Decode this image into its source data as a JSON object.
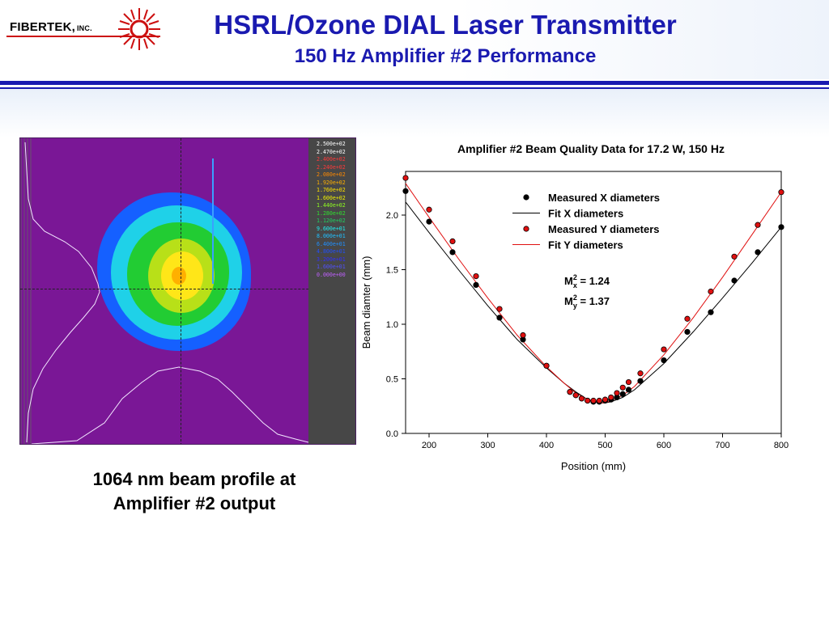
{
  "header": {
    "logo_text": "FIBERTEK,",
    "logo_suffix": "INC.",
    "title": "HSRL/Ozone DIAL Laser Transmitter",
    "subtitle": "150 Hz Amplifier #2 Performance"
  },
  "profile": {
    "color_scale": [
      {
        "label": "2.500e+02",
        "color": "#ffffff"
      },
      {
        "label": "2.470e+02",
        "color": "#ffffff"
      },
      {
        "label": "2.400e+02",
        "color": "#ff3a3a"
      },
      {
        "label": "2.240e+02",
        "color": "#ff3a3a"
      },
      {
        "label": "2.080e+02",
        "color": "#ff8a00"
      },
      {
        "label": "1.920e+02",
        "color": "#ffb000"
      },
      {
        "label": "1.760e+02",
        "color": "#ffe000"
      },
      {
        "label": "1.600e+02",
        "color": "#f0f000"
      },
      {
        "label": "1.440e+02",
        "color": "#90ff20"
      },
      {
        "label": "1.280e+02",
        "color": "#30e030"
      },
      {
        "label": "1.120e+02",
        "color": "#20d060"
      },
      {
        "label": "9.600e+01",
        "color": "#20f0f0"
      },
      {
        "label": "8.000e+01",
        "color": "#20c0ff"
      },
      {
        "label": "6.400e+01",
        "color": "#2090ff"
      },
      {
        "label": "4.800e+01",
        "color": "#2050ff"
      },
      {
        "label": "3.200e+01",
        "color": "#3030ff"
      },
      {
        "label": "1.600e+01",
        "color": "#5050ff"
      },
      {
        "label": "0.000e+00",
        "color": "#c060ff"
      }
    ],
    "caption_line1": "1064 nm beam profile at",
    "caption_line2": "Amplifier #2 output"
  },
  "chart_data": {
    "type": "scatter",
    "title": "Amplifier #2 Beam Quality Data for 17.2 W, 150 Hz",
    "xlabel": "Position (mm)",
    "ylabel": "Beam diamter (mm)",
    "xlim": [
      160,
      800
    ],
    "ylim": [
      0.0,
      2.4
    ],
    "xticks": [
      200,
      300,
      400,
      500,
      600,
      700,
      800
    ],
    "yticks": [
      0.0,
      0.5,
      1.0,
      1.5,
      2.0
    ],
    "xtick_labels": [
      "200",
      "300",
      "400",
      "500",
      "600",
      "700",
      "800"
    ],
    "ytick_labels": [
      "0.0",
      "0.5",
      "1.0",
      "1.5",
      "2.0"
    ],
    "legend_position": "top-right",
    "series": [
      {
        "name": "Measured X diameters",
        "kind": "markers",
        "color": "#000000",
        "x": [
          160,
          200,
          240,
          280,
          320,
          360,
          400,
          440,
          450,
          460,
          470,
          480,
          490,
          500,
          510,
          520,
          530,
          540,
          560,
          600,
          640,
          680,
          720,
          760,
          800
        ],
        "y": [
          2.22,
          1.94,
          1.66,
          1.36,
          1.06,
          0.86,
          0.62,
          0.38,
          0.35,
          0.32,
          0.3,
          0.29,
          0.29,
          0.3,
          0.31,
          0.33,
          0.36,
          0.4,
          0.48,
          0.67,
          0.93,
          1.11,
          1.4,
          1.66,
          1.89
        ]
      },
      {
        "name": "Fit X diameters",
        "kind": "line",
        "color": "#000000",
        "x": [
          160,
          200,
          250,
          300,
          350,
          400,
          430,
          450,
          470,
          490,
          500,
          510,
          530,
          550,
          600,
          650,
          700,
          750,
          800
        ],
        "y": [
          2.12,
          1.84,
          1.5,
          1.17,
          0.86,
          0.6,
          0.46,
          0.38,
          0.31,
          0.28,
          0.28,
          0.29,
          0.33,
          0.4,
          0.64,
          0.93,
          1.24,
          1.56,
          1.89
        ]
      },
      {
        "name": "Measured Y diameters",
        "kind": "markers",
        "color": "#e01010",
        "x": [
          160,
          200,
          240,
          280,
          320,
          360,
          400,
          440,
          450,
          460,
          470,
          480,
          490,
          500,
          510,
          520,
          530,
          540,
          560,
          600,
          640,
          680,
          720,
          760,
          800
        ],
        "y": [
          2.34,
          2.05,
          1.76,
          1.44,
          1.14,
          0.9,
          0.62,
          0.38,
          0.35,
          0.32,
          0.3,
          0.3,
          0.3,
          0.31,
          0.33,
          0.37,
          0.42,
          0.47,
          0.55,
          0.77,
          1.05,
          1.3,
          1.62,
          1.91,
          2.21
        ]
      },
      {
        "name": "Fit Y diameters",
        "kind": "line",
        "color": "#e01010",
        "x": [
          160,
          200,
          250,
          300,
          350,
          400,
          430,
          450,
          470,
          490,
          500,
          510,
          530,
          550,
          600,
          650,
          700,
          750,
          800
        ],
        "y": [
          2.29,
          1.98,
          1.6,
          1.24,
          0.9,
          0.61,
          0.46,
          0.37,
          0.31,
          0.28,
          0.28,
          0.3,
          0.35,
          0.43,
          0.72,
          1.06,
          1.43,
          1.82,
          2.21
        ]
      }
    ],
    "annotations": [
      {
        "base": "M",
        "sup": "2",
        "sub": "x",
        "value": " = 1.24"
      },
      {
        "base": "M",
        "sup": "2",
        "sub": "y",
        "value": " = 1.37"
      }
    ]
  }
}
